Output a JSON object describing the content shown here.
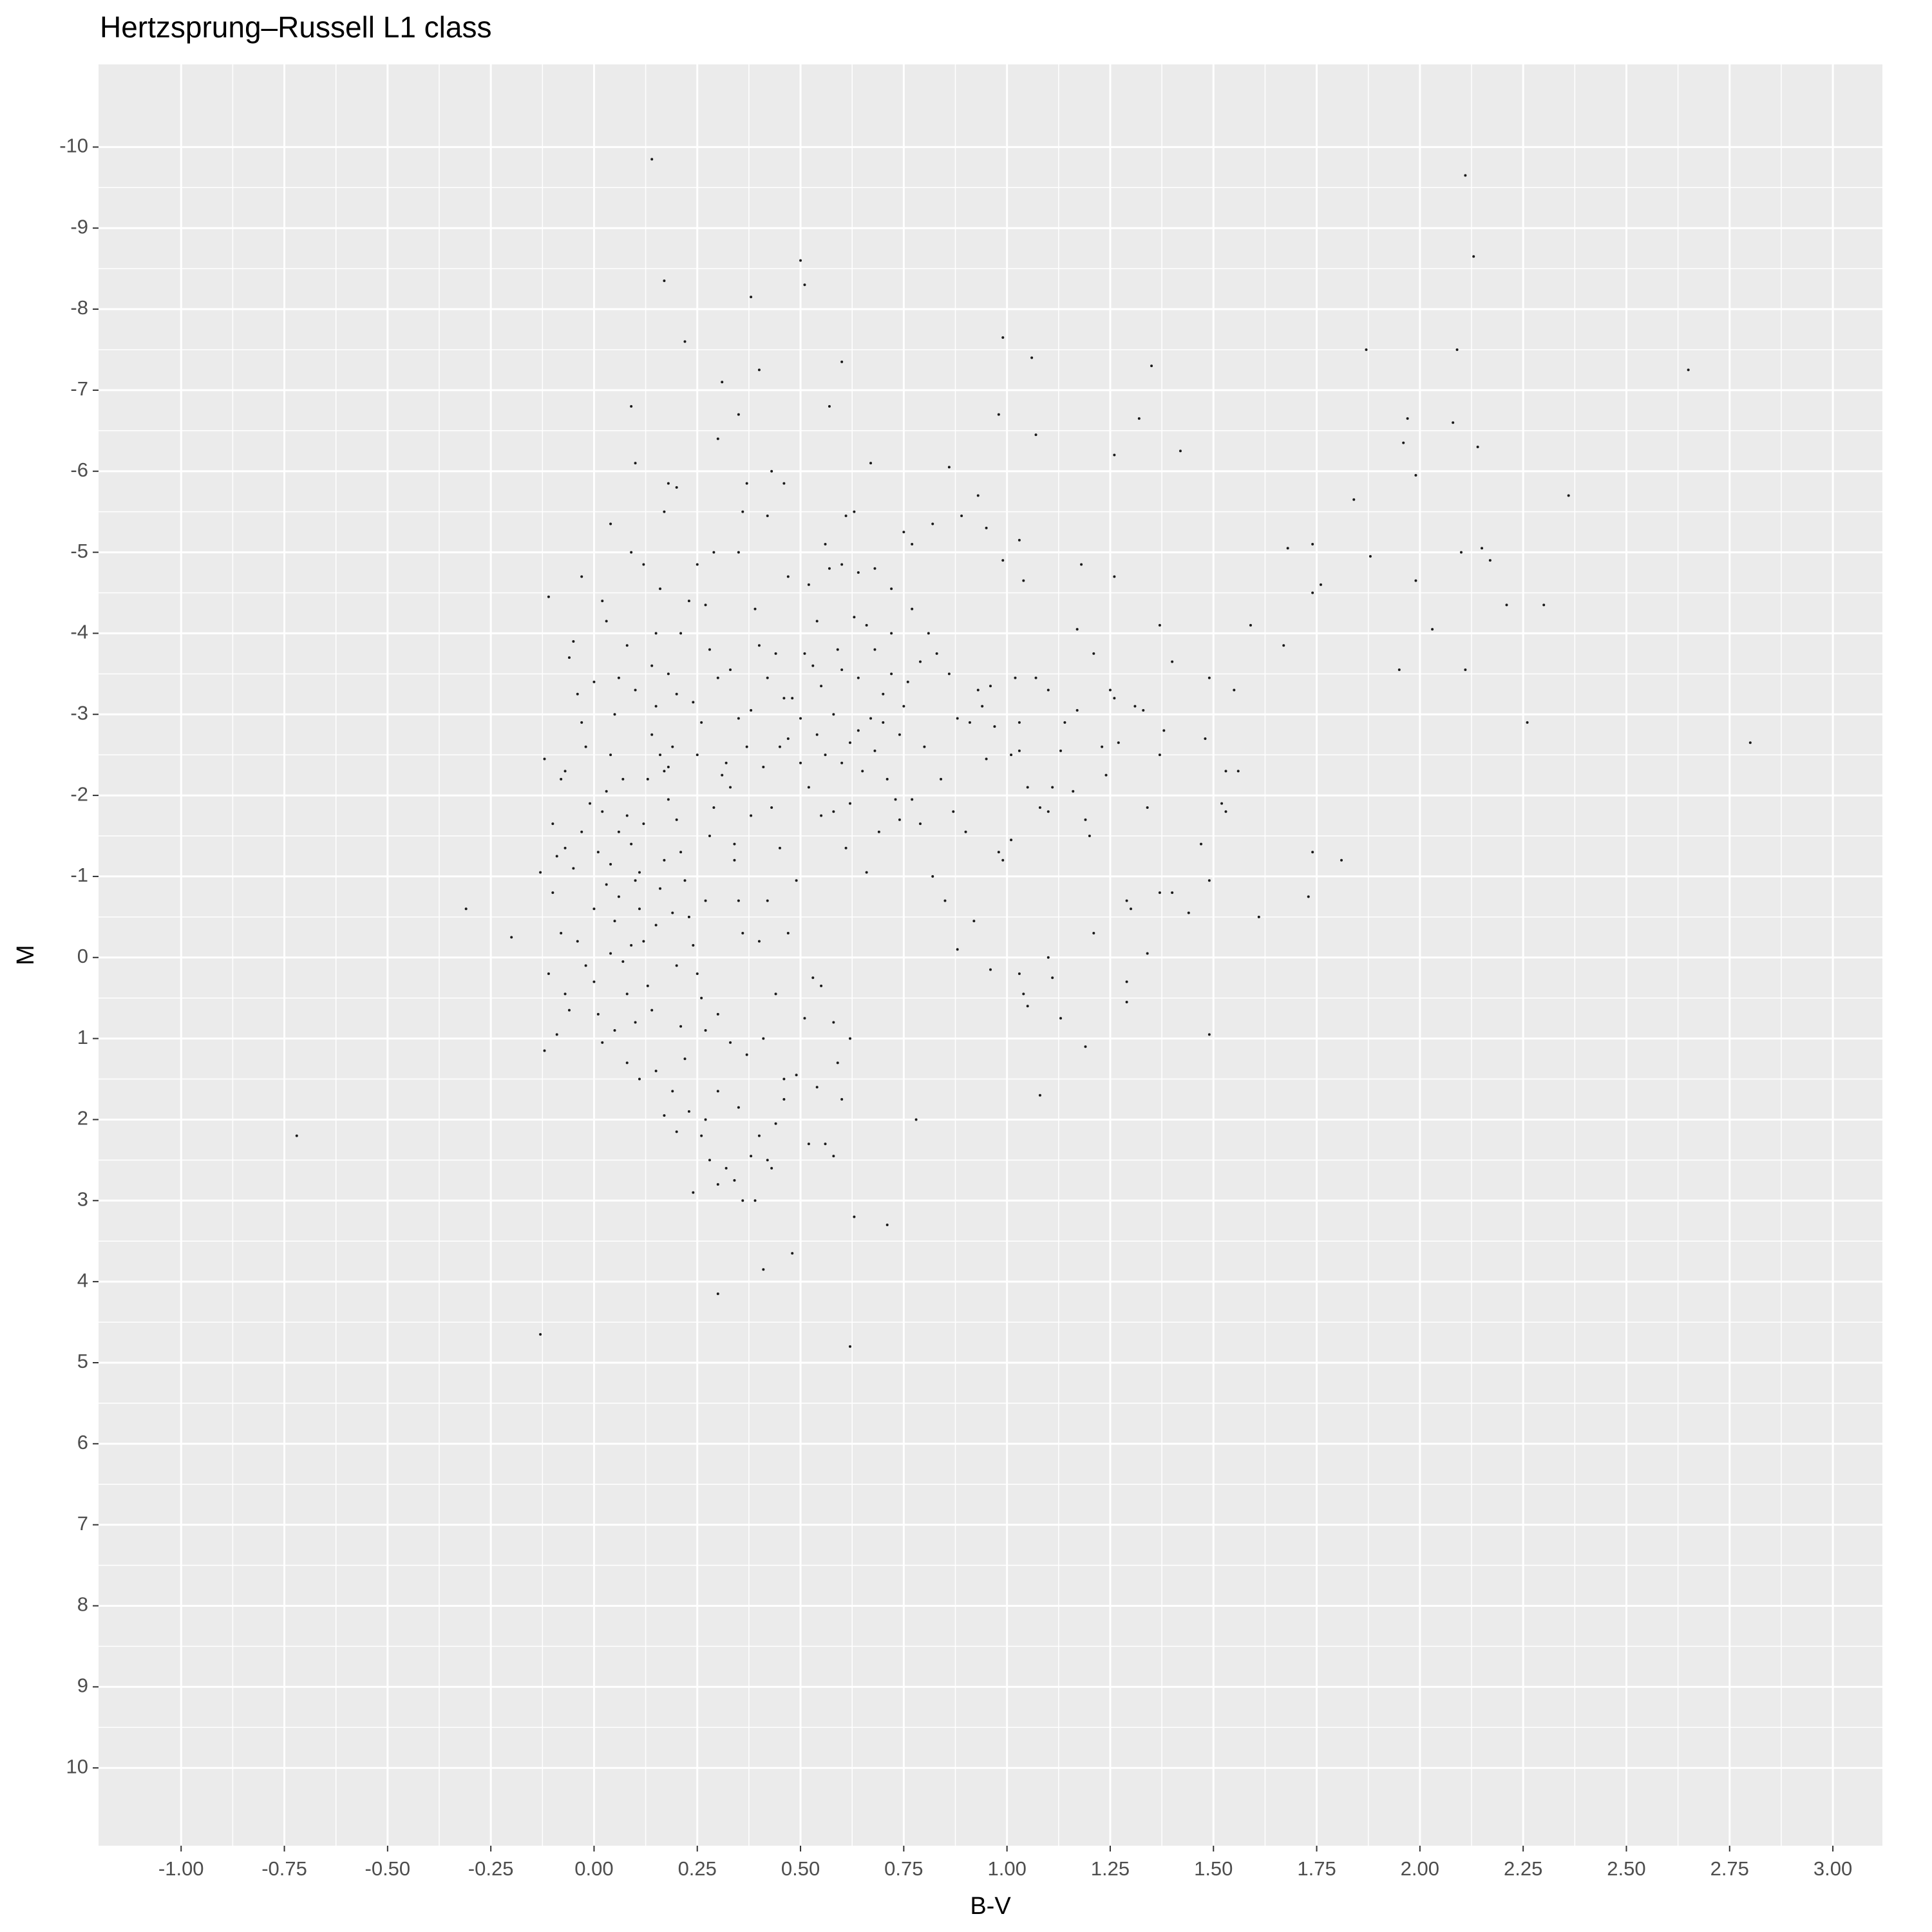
{
  "chart_data": {
    "type": "scatter",
    "title": "Hertzsprung–Russell L1 class",
    "x_label": "B-V",
    "y_label": "M",
    "x": [
      -0.72,
      -0.31,
      -0.2,
      -0.13,
      0.62,
      0.3,
      0.14,
      2.11,
      2.13,
      0.5,
      0.17,
      0.38,
      0.51,
      0.22,
      0.99,
      1.87,
      2.09,
      2.65,
      0.4,
      0.31,
      0.6,
      1.06,
      1.35,
      0.09,
      0.57,
      0.35,
      0.98,
      1.32,
      1.97,
      2.08,
      1.07,
      0.3,
      1.96,
      2.14,
      1.42,
      1.26,
      0.1,
      0.67,
      0.86,
      0.43,
      1.99,
      2.36,
      1.84,
      2.8,
      2.26,
      2.3,
      2.21,
      2.03,
      2.11,
      1.95,
      1.99,
      1.74,
      1.76,
      1.74,
      1.68,
      1.88,
      2.15,
      2.1,
      2.17,
      1.49,
      1.61,
      1.73,
      1.81,
      1.74,
      1.08,
      1.19,
      0.78,
      0.71,
      0.63,
      0.48,
      0.41,
      1.67,
      1.59,
      1.37,
      1.4,
      1.31,
      1.33,
      1.25,
      1.26,
      1.17,
      1.14,
      1.13,
      1.11,
      1.16,
      1.19,
      1.2,
      1.24,
      1.23,
      1.27,
      1.37,
      1.38,
      1.48,
      1.49,
      1.55,
      1.53,
      1.56,
      1.52,
      1.53,
      1.47,
      1.34,
      1.44,
      1.4,
      1.37,
      1.29,
      1.3,
      1.34,
      1.29,
      1.29,
      1.21,
      1.49,
      1.13,
      1.1,
      1.11,
      1.03,
      1.04,
      1.05,
      0.96,
      0.88,
      0.92,
      1.01,
      0.98,
      0.99,
      1.08,
      1.1,
      1.05,
      1.01,
      1.03,
      1.03,
      1.02,
      1.07,
      1.1,
      1.17,
      1.21,
      1.18,
      1.26,
      1.04,
      1.03,
      0.99,
      0.95,
      0.93,
      0.89,
      0.82,
      0.77,
      0.75,
      0.96,
      0.94,
      0.97,
      0.95,
      0.88,
      0.86,
      0.83,
      0.79,
      0.76,
      0.72,
      0.7,
      0.68,
      0.66,
      0.63,
      0.6,
      0.58,
      0.56,
      0.62,
      0.65,
      0.68,
      0.71,
      0.74,
      0.77,
      0.79,
      0.74,
      0.69,
      0.73,
      0.66,
      0.61,
      0.58,
      0.55,
      0.52,
      0.5,
      0.47,
      0.48,
      0.51,
      0.54,
      0.57,
      0.6,
      0.63,
      0.61,
      0.56,
      0.52,
      0.47,
      0.46,
      0.42,
      0.37,
      0.36,
      0.35,
      0.39,
      0.4,
      0.42,
      0.38,
      0.35,
      0.33,
      0.3,
      0.28,
      0.27,
      0.29,
      0.25,
      0.23,
      0.21,
      0.2,
      0.18,
      0.17,
      0.16,
      0.15,
      0.14,
      0.12,
      0.09,
      0.04,
      0.02,
      -0.03,
      -0.11,
      -0.05,
      -0.06,
      -0.04,
      -0.03,
      -0.02,
      -0.07,
      -0.08,
      -0.1,
      -0.09,
      -0.07,
      -0.05,
      -0.12,
      -0.13,
      -0.1,
      -0.08,
      -0.11,
      -0.07,
      -0.06,
      -0.09,
      -0.12,
      -0.04,
      -0.02,
      0.0,
      0.01,
      0.02,
      0.03,
      0.04,
      0.05,
      0.06,
      0.07,
      0.08,
      0.09,
      0.1,
      0.11,
      0.12,
      0.13,
      0.14,
      0.15,
      0.16,
      0.17,
      0.18,
      0.19,
      0.2,
      0.21,
      0.22,
      0.23,
      0.24,
      0.25,
      0.26,
      0.27,
      0.28,
      0.29,
      0.31,
      0.32,
      0.33,
      0.34,
      0.35,
      0.36,
      0.3,
      0.33,
      0.0,
      0.01,
      0.02,
      0.03,
      0.04,
      0.05,
      0.06,
      0.07,
      0.08,
      0.09,
      0.1,
      0.11,
      0.12,
      0.13,
      0.14,
      0.15,
      0.16,
      0.17,
      0.18,
      0.19,
      0.2,
      0.21,
      0.22,
      0.06,
      0.04,
      -0.01,
      -0.03,
      0.05,
      0.08,
      0.11,
      0.15,
      0.19,
      0.23,
      0.26,
      0.28,
      0.3,
      0.32,
      0.34,
      0.36,
      0.38,
      0.4,
      0.42,
      0.44,
      0.46,
      0.49,
      0.52,
      0.54,
      0.55,
      0.53,
      0.51,
      0.56,
      0.58,
      0.6,
      0.59,
      0.58,
      0.62,
      0.46,
      0.43,
      0.39,
      0.35,
      0.3,
      0.27,
      0.24,
      0.2,
      0.17,
      0.37,
      0.41,
      0.44,
      0.4,
      0.42,
      0.45,
      0.47,
      0.49,
      0.43,
      0.38,
      0.34,
      0.27,
      0.25,
      0.24,
      0.26,
      0.2,
      0.18,
      0.1,
      0.08,
      0.03,
      0.0,
      0.44,
      0.46,
      0.53,
      0.55,
      0.59,
      0.64,
      0.67,
      0.7,
      0.64,
      0.6,
      0.54,
      0.5,
      0.45,
      0.41,
      0.37,
      0.62,
      0.75,
      0.8,
      0.84,
      0.87,
      0.9,
      0.82,
      0.85,
      0.91,
      0.93,
      0.81,
      0.77,
      0.72,
      0.68,
      0.64,
      0.72
    ],
    "values": [
      2.2,
      -0.6,
      -0.25,
      4.65,
      4.8,
      4.15,
      -9.85,
      -9.65,
      -8.65,
      -8.6,
      -8.35,
      -8.15,
      -8.3,
      -7.6,
      -7.65,
      -7.5,
      -7.5,
      -7.25,
      -7.25,
      -7.1,
      -7.35,
      -7.4,
      -7.3,
      -6.8,
      -6.8,
      -6.7,
      -6.7,
      -6.65,
      -6.65,
      -6.6,
      -6.45,
      -6.4,
      -6.35,
      -6.3,
      -6.25,
      -6.2,
      -6.1,
      -6.1,
      -6.05,
      -6.0,
      -5.95,
      -5.7,
      -5.65,
      -2.65,
      -2.9,
      -4.35,
      -4.35,
      -4.05,
      -3.55,
      -3.55,
      -4.65,
      -4.5,
      -4.6,
      -5.1,
      -5.05,
      -4.95,
      -5.05,
      -5.0,
      -4.9,
      -0.95,
      -0.5,
      -0.75,
      -1.2,
      -1.3,
      1.7,
      1.1,
      2.0,
      3.3,
      3.2,
      3.65,
      3.85,
      -3.85,
      -4.1,
      -4.1,
      -3.65,
      -3.1,
      -3.05,
      -3.3,
      -3.2,
      -3.05,
      -2.9,
      -2.55,
      -2.1,
      -2.05,
      -1.7,
      -1.5,
      -2.25,
      -2.6,
      -2.65,
      -2.5,
      -2.8,
      -2.7,
      -3.45,
      -3.3,
      -2.3,
      -2.3,
      -1.9,
      -1.8,
      -1.4,
      -1.85,
      -0.55,
      -0.8,
      -0.8,
      -0.7,
      -0.6,
      -0.05,
      0.3,
      0.55,
      -0.3,
      0.95,
      0.75,
      0.0,
      0.25,
      0.2,
      0.45,
      0.6,
      0.15,
      -0.1,
      -0.45,
      -1.45,
      -1.3,
      -1.2,
      -1.85,
      -1.8,
      -2.1,
      -2.5,
      -2.55,
      -2.9,
      -3.45,
      -3.45,
      -3.3,
      -4.05,
      -3.75,
      -4.85,
      -4.7,
      -4.65,
      -5.15,
      -4.9,
      -5.3,
      -5.7,
      -5.45,
      -5.35,
      -5.1,
      -5.25,
      -3.35,
      -3.1,
      -2.85,
      -2.45,
      -2.95,
      -3.5,
      -3.75,
      -3.65,
      -3.4,
      -3.5,
      -3.25,
      -3.8,
      -4.1,
      -4.2,
      -3.55,
      -3.0,
      -2.5,
      -2.65,
      -2.3,
      -2.55,
      -2.2,
      -2.75,
      -1.95,
      -1.65,
      -1.7,
      -1.55,
      -1.95,
      -1.05,
      -1.35,
      -1.8,
      -1.75,
      -2.1,
      -2.4,
      -2.7,
      -3.2,
      -3.75,
      -4.15,
      -4.8,
      -4.85,
      -5.5,
      -5.45,
      -5.1,
      -4.6,
      -4.7,
      -5.85,
      -5.45,
      -5.85,
      -5.5,
      -5.0,
      -4.3,
      -3.85,
      -3.45,
      -3.05,
      -2.95,
      -3.55,
      -3.45,
      -3.8,
      -4.35,
      -5.0,
      -4.85,
      -4.4,
      -4.0,
      -5.8,
      -5.85,
      -5.5,
      -4.55,
      -4.0,
      -3.6,
      -4.85,
      -5.0,
      -5.35,
      -4.4,
      -4.7,
      -4.45,
      -3.9,
      -3.7,
      -3.25,
      -2.9,
      -2.6,
      -2.3,
      -2.2,
      -1.65,
      -1.25,
      -1.35,
      -1.1,
      -2.45,
      -1.05,
      -0.8,
      -0.3,
      0.2,
      0.45,
      0.65,
      0.95,
      1.15,
      -0.2,
      0.1,
      -0.6,
      -1.3,
      -1.8,
      -2.05,
      -2.5,
      -3.0,
      -3.45,
      -2.2,
      -1.75,
      -1.4,
      -0.95,
      -0.6,
      -0.2,
      0.35,
      0.65,
      -0.4,
      -0.85,
      -1.2,
      -2.35,
      -2.6,
      -1.7,
      -1.3,
      -0.95,
      -0.5,
      -0.15,
      0.2,
      0.5,
      0.9,
      -1.5,
      -1.85,
      -2.25,
      -2.4,
      -2.1,
      -1.4,
      -0.7,
      -0.3,
      0.7,
      1.05,
      0.3,
      0.7,
      1.05,
      -0.9,
      -1.15,
      -0.45,
      -0.75,
      0.05,
      0.45,
      -0.15,
      0.8,
      -1.05,
      -1.65,
      -2.2,
      -2.75,
      -3.1,
      -2.5,
      -2.3,
      -1.95,
      -0.55,
      0.1,
      0.85,
      1.25,
      -1.55,
      -0.05,
      -1.9,
      -1.55,
      0.9,
      1.3,
      1.5,
      1.4,
      1.65,
      1.9,
      2.2,
      2.5,
      2.8,
      2.6,
      2.75,
      3.0,
      2.45,
      2.2,
      2.5,
      2.05,
      1.75,
      1.45,
      2.3,
      1.6,
      0.35,
      0.25,
      0.75,
      2.3,
      2.45,
      1.75,
      1.3,
      0.8,
      1.0,
      1.5,
      2.6,
      3.0,
      1.85,
      1.65,
      2.0,
      2.9,
      2.15,
      1.95,
      1.2,
      1.0,
      0.45,
      -0.2,
      -0.7,
      -1.35,
      -0.3,
      -0.95,
      -1.85,
      -1.75,
      -1.2,
      -0.7,
      -2.5,
      -3.15,
      -2.9,
      -3.25,
      -3.5,
      -3.3,
      -3.85,
      -4.15,
      -3.4,
      -3.75,
      -3.2,
      -3.6,
      -3.35,
      -3.8,
      -3.45,
      -2.95,
      -2.9,
      -2.8,
      -2.4,
      -2.75,
      -2.95,
      -2.6,
      -2.35,
      -2.6,
      -1.9,
      -3.1,
      -2.6,
      -2.2,
      -1.8,
      -1.55,
      -1.0,
      -0.7,
      -2.9,
      -3.3,
      -4.0,
      -4.3,
      -4.55,
      -4.8,
      -4.75,
      -4.0
    ],
    "color": "#1a1a1a",
    "xlim": [
      -1.2,
      3.12
    ],
    "ylim": [
      10.96,
      -11.02
    ],
    "xticks": [
      {
        "value": -1,
        "label": "-1.00"
      },
      {
        "value": -0.75,
        "label": "-0.75"
      },
      {
        "value": -0.5,
        "label": "-0.50"
      },
      {
        "value": -0.25,
        "label": "-0.25"
      },
      {
        "value": 0,
        "label": "0.00"
      },
      {
        "value": 0.25,
        "label": "0.25"
      },
      {
        "value": 0.5,
        "label": "0.50"
      },
      {
        "value": 0.75,
        "label": "0.75"
      },
      {
        "value": 1,
        "label": "1.00"
      },
      {
        "value": 1.25,
        "label": "1.25"
      },
      {
        "value": 1.5,
        "label": "1.50"
      },
      {
        "value": 1.75,
        "label": "1.75"
      },
      {
        "value": 2,
        "label": "2.00"
      },
      {
        "value": 2.25,
        "label": "2.25"
      },
      {
        "value": 2.5,
        "label": "2.50"
      },
      {
        "value": 2.75,
        "label": "2.75"
      },
      {
        "value": 3,
        "label": "3.00"
      }
    ],
    "yticks": [
      -10,
      -9,
      -8,
      -7,
      -6,
      -5,
      -4,
      -3,
      -2,
      -1,
      0,
      1,
      2,
      3,
      4,
      5,
      6,
      7,
      8,
      9,
      10
    ],
    "grid": true
  }
}
